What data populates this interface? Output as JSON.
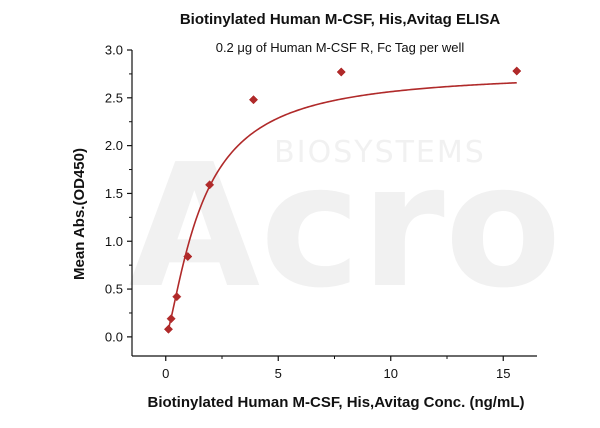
{
  "chart_data": {
    "type": "scatter",
    "title": "Biotinylated Human M-CSF, His,Avitag ELISA",
    "subtitle": "0.2 μg of Human M-CSF R, Fc Tag per well",
    "xlabel": "Biotinylated Human M-CSF, His,Avitag Conc. (ng/mL)",
    "ylabel": "Mean Abs.(OD450)",
    "xlim": [
      -1.5,
      16.5
    ],
    "ylim": [
      -0.2,
      3.0
    ],
    "x_ticks": [
      0,
      5,
      10,
      15
    ],
    "y_ticks": [
      0.0,
      0.5,
      1.0,
      1.5,
      2.0,
      2.5,
      3.0
    ],
    "x_tick_labels": [
      "0",
      "5",
      "10",
      "15"
    ],
    "y_tick_labels": [
      "0.0",
      "0.5",
      "1.0",
      "1.5",
      "2.0",
      "2.5",
      "3.0"
    ],
    "grid": false,
    "legend": "none",
    "marker_color": "#b02a2a",
    "line_color": "#b02a2a",
    "points": [
      {
        "x": 0.12,
        "y": 0.08
      },
      {
        "x": 0.24,
        "y": 0.19
      },
      {
        "x": 0.49,
        "y": 0.42
      },
      {
        "x": 0.98,
        "y": 0.84
      },
      {
        "x": 1.95,
        "y": 1.59
      },
      {
        "x": 3.9,
        "y": 2.48
      },
      {
        "x": 7.8,
        "y": 2.77
      },
      {
        "x": 15.6,
        "y": 2.78
      }
    ],
    "fit": {
      "type": "4PL",
      "bottom": 0.0,
      "top": 2.78,
      "ec50": 1.6,
      "hill": 1.35
    }
  },
  "watermark": {
    "brand": "Acro",
    "tagline": "BIOSYSTEMS"
  }
}
